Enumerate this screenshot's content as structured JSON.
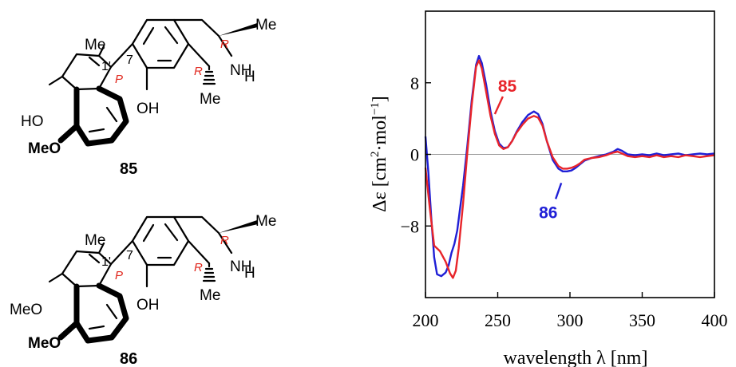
{
  "compounds": [
    {
      "number": "85",
      "oxygen_top": "HO",
      "oxygen_bottom": "MeO",
      "methyl_aryl": "Me",
      "locant_1p": "1'",
      "locant_7": "7",
      "axis_config": "P",
      "oh_label": "OH",
      "nh_label": "NH",
      "h_label": "H",
      "methyl_c3": "Me",
      "methyl_c1": "Me",
      "config_c3": "R",
      "config_c1": "R"
    },
    {
      "number": "86",
      "oxygen_top": "MeO",
      "oxygen_bottom": "MeO",
      "methyl_aryl": "Me",
      "locant_1p": "1'",
      "locant_7": "7",
      "axis_config": "P",
      "oh_label": "OH",
      "nh_label": "NH",
      "h_label": "H",
      "methyl_c3": "Me",
      "methyl_c1": "Me",
      "config_c3": "R",
      "config_c1": "R"
    }
  ],
  "chart_data": {
    "type": "line",
    "xlabel": "wavelength λ [nm]",
    "ylabel_main": "Δε [cm",
    "ylabel_sup1": "2",
    "ylabel_mid": "·mol",
    "ylabel_sup2": "−1",
    "ylabel_end": "]",
    "xlim": [
      200,
      400
    ],
    "ylim": [
      -16,
      16
    ],
    "xticks": [
      200,
      250,
      300,
      350,
      400
    ],
    "yticks": [
      -8,
      0,
      8
    ],
    "ytick_labels": [
      "−8",
      "0",
      "8"
    ],
    "grid": false,
    "zero_line": true,
    "series": [
      {
        "name": "85",
        "color": "#e8242a",
        "x": [
          200,
          203,
          206,
          210,
          214,
          217,
          219,
          221,
          223,
          226,
          229,
          232,
          235,
          237,
          239,
          242,
          245,
          248,
          251,
          254,
          257,
          260,
          263,
          267,
          271,
          275,
          278,
          281,
          284,
          288,
          292,
          295,
          298,
          301,
          304,
          307,
          310,
          315,
          320,
          325,
          330,
          333,
          336,
          340,
          345,
          350,
          355,
          360,
          365,
          370,
          375,
          380,
          385,
          390,
          395,
          400
        ],
        "y": [
          -1.5,
          -6,
          -10.2,
          -10.8,
          -12.0,
          -13.3,
          -13.8,
          -13.0,
          -10.5,
          -5.5,
          0.3,
          5.5,
          9.8,
          10.5,
          9.6,
          7.0,
          4.3,
          2.3,
          1.0,
          0.6,
          0.8,
          1.5,
          2.4,
          3.3,
          4.0,
          4.3,
          4.1,
          3.2,
          1.5,
          -0.3,
          -1.3,
          -1.6,
          -1.6,
          -1.5,
          -1.3,
          -1.0,
          -0.6,
          -0.4,
          -0.3,
          -0.1,
          0.2,
          0.3,
          0.1,
          -0.2,
          -0.3,
          -0.2,
          -0.3,
          -0.1,
          -0.3,
          -0.2,
          -0.3,
          -0.1,
          -0.2,
          -0.3,
          -0.2,
          -0.1
        ]
      },
      {
        "name": "86",
        "color": "#1f1fd6",
        "x": [
          200,
          202,
          204,
          206,
          208,
          211,
          214,
          216,
          218,
          220,
          222,
          224,
          226,
          229,
          232,
          235,
          237,
          239,
          242,
          245,
          248,
          251,
          254,
          257,
          260,
          263,
          267,
          271,
          275,
          278,
          281,
          284,
          288,
          292,
          295,
          298,
          301,
          304,
          307,
          310,
          315,
          320,
          325,
          330,
          333,
          336,
          340,
          345,
          350,
          355,
          360,
          365,
          370,
          375,
          380,
          385,
          390,
          395,
          400
        ],
        "y": [
          2.0,
          -2.0,
          -7.0,
          -11.5,
          -13.4,
          -13.6,
          -13.2,
          -12.4,
          -11.0,
          -10.0,
          -8.5,
          -6.0,
          -3.5,
          1.0,
          6.0,
          10.0,
          11.0,
          10.2,
          7.8,
          4.8,
          2.6,
          1.2,
          0.7,
          0.8,
          1.5,
          2.5,
          3.6,
          4.4,
          4.8,
          4.5,
          3.4,
          1.5,
          -0.6,
          -1.6,
          -1.9,
          -1.9,
          -1.8,
          -1.5,
          -1.1,
          -0.7,
          -0.4,
          -0.2,
          0.0,
          0.3,
          0.6,
          0.4,
          0.0,
          -0.1,
          0.0,
          -0.1,
          0.1,
          -0.1,
          0.0,
          0.1,
          -0.1,
          0.0,
          0.1,
          0.0,
          0.1
        ]
      }
    ],
    "annotations": [
      {
        "label": "85",
        "color": "#e8242a",
        "x": 248,
        "y": 4.5
      },
      {
        "label": "86",
        "color": "#1f1fd6",
        "x": 294,
        "y": -3.2
      }
    ]
  }
}
